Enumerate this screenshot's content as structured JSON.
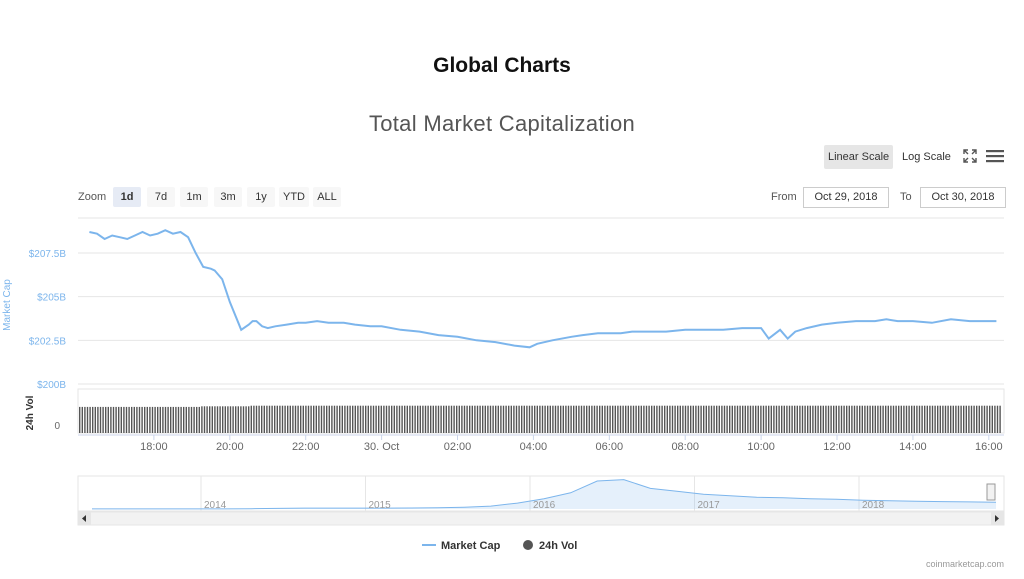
{
  "page": {
    "title": "Global Charts",
    "credit": "coinmarketcap.com"
  },
  "toolbar": {
    "linear_label": "Linear Scale",
    "log_label": "Log Scale",
    "zoom_label": "Zoom",
    "zoom_options": [
      "1d",
      "7d",
      "1m",
      "3m",
      "1y",
      "YTD",
      "ALL"
    ],
    "zoom_selected": "1d",
    "from_label": "From",
    "from_value": "Oct 29, 2018",
    "to_label": "To",
    "to_value": "Oct 30, 2018"
  },
  "colors": {
    "market_cap": "#7cb5ec",
    "volume": "#555555",
    "axis_text": "#666666",
    "grid": "#e6e6e6"
  },
  "chart_data": {
    "type": "line",
    "title": "Total Market Capitalization",
    "series": [
      {
        "name": "Market Cap",
        "x": [
          16.3,
          16.5,
          16.7,
          16.9,
          17.1,
          17.3,
          17.5,
          17.7,
          17.9,
          18.1,
          18.3,
          18.5,
          18.7,
          18.9,
          19.1,
          19.3,
          19.5,
          19.6,
          19.8,
          20.0,
          20.3,
          20.5,
          20.6,
          20.7,
          20.85,
          21.0,
          21.2,
          21.5,
          21.8,
          22.0,
          22.3,
          22.6,
          23.0,
          23.3,
          23.7,
          24.0,
          24.5,
          25.0,
          25.5,
          26.0,
          26.5,
          27.0,
          27.5,
          27.9,
          28.1,
          28.5,
          29.0,
          29.3,
          29.7,
          30.0,
          30.3,
          30.6,
          31.0,
          31.5,
          32.0,
          32.5,
          33.0,
          33.5,
          34.0,
          34.2,
          34.5,
          34.7,
          34.9,
          35.2,
          35.6,
          36.0,
          36.5,
          37.0,
          37.3,
          37.6,
          38.0,
          38.5,
          39.0,
          39.5,
          40.0,
          40.2
        ],
        "values": [
          208.7,
          208.6,
          208.3,
          208.5,
          208.4,
          208.3,
          208.5,
          208.7,
          208.5,
          208.6,
          208.8,
          208.6,
          208.7,
          208.4,
          207.5,
          206.7,
          206.6,
          206.5,
          206.0,
          204.7,
          203.1,
          203.4,
          203.6,
          203.6,
          203.3,
          203.2,
          203.3,
          203.4,
          203.5,
          203.5,
          203.6,
          203.5,
          203.5,
          203.4,
          203.3,
          203.3,
          203.1,
          203.0,
          202.8,
          202.7,
          202.5,
          202.4,
          202.2,
          202.1,
          202.3,
          202.5,
          202.7,
          202.8,
          202.9,
          202.9,
          202.9,
          203.0,
          203.0,
          203.0,
          203.1,
          203.1,
          203.1,
          203.2,
          203.2,
          202.6,
          203.1,
          202.6,
          203.0,
          203.2,
          203.4,
          203.5,
          203.6,
          203.6,
          203.7,
          203.6,
          203.6,
          203.5,
          203.7,
          203.6,
          203.6,
          203.6
        ]
      },
      {
        "name": "24h Vol",
        "volume_level": 0.85
      }
    ],
    "y_ticks": [
      "$200B",
      "$202.5B",
      "$205B",
      "$207.5B"
    ],
    "y_tick_values": [
      200,
      202.5,
      205,
      207.5
    ],
    "ylim": [
      200,
      209.5
    ],
    "ylabel": "Market Cap",
    "vol_label": "24h Vol",
    "vol_zero_label": "0",
    "x_ticks": [
      "18:00",
      "20:00",
      "22:00",
      "30. Oct",
      "02:00",
      "04:00",
      "06:00",
      "08:00",
      "10:00",
      "12:00",
      "14:00",
      "16:00"
    ],
    "x_tick_values": [
      18,
      20,
      22,
      24,
      26,
      28,
      30,
      32,
      34,
      36,
      38,
      40
    ],
    "xlim": [
      16.0,
      40.4
    ],
    "navigator_ticks": [
      "2014",
      "2015",
      "2016",
      "2017",
      "2018"
    ],
    "navigator_values": [
      0.2,
      0.2,
      0.2,
      0.25,
      0.35,
      0.5,
      1,
      2,
      3,
      3,
      3,
      3,
      3.5,
      4,
      6,
      10,
      20,
      35,
      55,
      95,
      100,
      70,
      60,
      50,
      45,
      40,
      38,
      35,
      33,
      30,
      28,
      26,
      25,
      24,
      23
    ],
    "legend": [
      "Market Cap",
      "24h Vol"
    ],
    "legend_position": "bottom-center",
    "grid": true
  }
}
